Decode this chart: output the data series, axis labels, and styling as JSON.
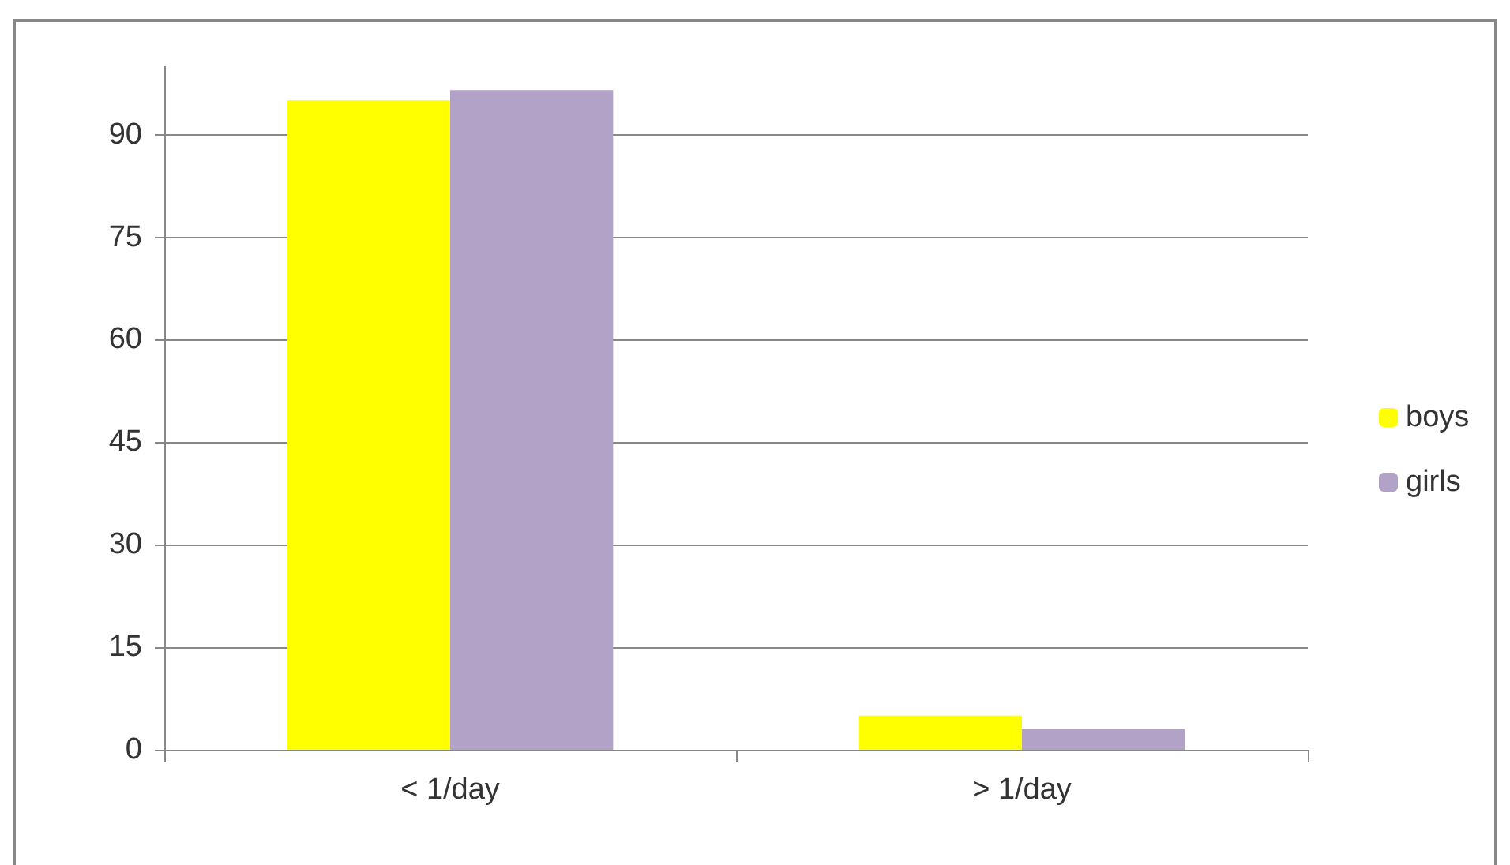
{
  "chart_data": {
    "type": "bar",
    "categories": [
      "< 1/day",
      "> 1/day"
    ],
    "series": [
      {
        "name": "boys",
        "color": "#ffff00",
        "values": [
          95,
          5
        ]
      },
      {
        "name": "girls",
        "color": "#b3a2c7",
        "values": [
          96.5,
          3
        ]
      }
    ],
    "ylim": [
      0,
      100
    ],
    "yticks": [
      0,
      15,
      30,
      45,
      60,
      75,
      90
    ],
    "grid": "y",
    "legend": "right"
  }
}
